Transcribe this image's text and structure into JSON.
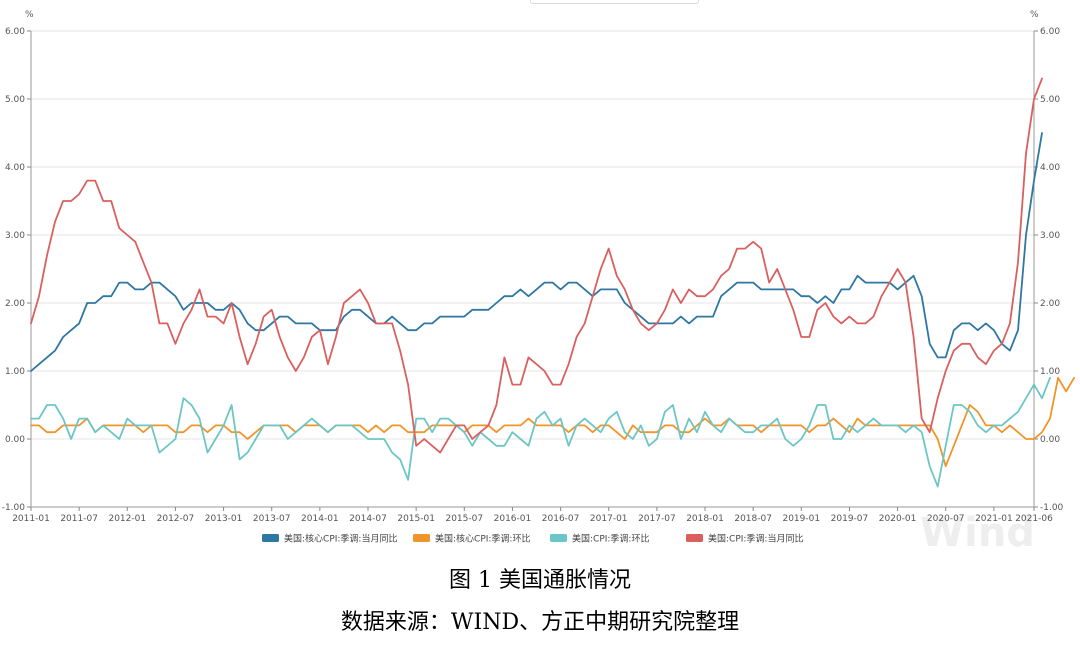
{
  "chart_data": {
    "type": "line",
    "unit_left": "%",
    "unit_right": "%",
    "ylim": [
      -1,
      6
    ],
    "y_ticks": [
      "6.00",
      "5.00",
      "4.00",
      "3.00",
      "2.00",
      "1.00",
      "0.00",
      "-1.00"
    ],
    "x_ticks": [
      "2011-01",
      "2011-07",
      "2012-01",
      "2012-07",
      "2013-01",
      "2013-07",
      "2014-01",
      "2014-07",
      "2015-01",
      "2015-07",
      "2016-01",
      "2016-07",
      "2017-01",
      "2017-07",
      "2018-01",
      "2018-07",
      "2019-01",
      "2019-07",
      "2020-01",
      "2020-07",
      "2021-01",
      "2021-06"
    ],
    "x_start": "2011-01",
    "x_end": "2021-06",
    "grid": true,
    "legend_position": "bottom",
    "watermark": "Wind",
    "series": [
      {
        "name": "美国:核心CPI:季调:当月同比",
        "color": "#2e77a3",
        "values": [
          1.0,
          1.1,
          1.2,
          1.3,
          1.5,
          1.6,
          1.7,
          2.0,
          2.0,
          2.1,
          2.1,
          2.3,
          2.3,
          2.2,
          2.2,
          2.3,
          2.3,
          2.2,
          2.1,
          1.9,
          2.0,
          2.0,
          2.0,
          1.9,
          1.9,
          2.0,
          1.9,
          1.7,
          1.6,
          1.6,
          1.7,
          1.8,
          1.8,
          1.7,
          1.7,
          1.7,
          1.6,
          1.6,
          1.6,
          1.8,
          1.9,
          1.9,
          1.8,
          1.7,
          1.7,
          1.8,
          1.7,
          1.6,
          1.6,
          1.7,
          1.7,
          1.8,
          1.8,
          1.8,
          1.8,
          1.9,
          1.9,
          1.9,
          2.0,
          2.1,
          2.1,
          2.2,
          2.1,
          2.2,
          2.3,
          2.3,
          2.2,
          2.3,
          2.3,
          2.2,
          2.1,
          2.2,
          2.2,
          2.2,
          2.0,
          1.9,
          1.8,
          1.7,
          1.7,
          1.7,
          1.7,
          1.8,
          1.7,
          1.8,
          1.8,
          1.8,
          2.1,
          2.2,
          2.3,
          2.3,
          2.3,
          2.2,
          2.2,
          2.2,
          2.2,
          2.2,
          2.1,
          2.1,
          2.0,
          2.1,
          2.0,
          2.2,
          2.2,
          2.4,
          2.3,
          2.3,
          2.3,
          2.3,
          2.2,
          2.3,
          2.4,
          2.1,
          1.4,
          1.2,
          1.2,
          1.6,
          1.7,
          1.7,
          1.6,
          1.7,
          1.6,
          1.4,
          1.3,
          1.6,
          3.0,
          3.8,
          4.5
        ]
      },
      {
        "name": "美国:核心CPI:季调:环比",
        "color": "#f0952a",
        "values": [
          0.2,
          0.2,
          0.1,
          0.1,
          0.2,
          0.2,
          0.2,
          0.3,
          0.1,
          0.2,
          0.2,
          0.2,
          0.2,
          0.2,
          0.1,
          0.2,
          0.2,
          0.2,
          0.1,
          0.1,
          0.2,
          0.2,
          0.1,
          0.2,
          0.2,
          0.1,
          0.1,
          0.0,
          0.1,
          0.2,
          0.2,
          0.2,
          0.2,
          0.1,
          0.2,
          0.2,
          0.2,
          0.1,
          0.2,
          0.2,
          0.2,
          0.2,
          0.1,
          0.2,
          0.1,
          0.2,
          0.2,
          0.1,
          0.1,
          0.1,
          0.2,
          0.2,
          0.2,
          0.2,
          0.1,
          0.2,
          0.2,
          0.2,
          0.1,
          0.2,
          0.2,
          0.2,
          0.3,
          0.2,
          0.2,
          0.2,
          0.2,
          0.1,
          0.2,
          0.2,
          0.1,
          0.2,
          0.2,
          0.1,
          0.0,
          0.2,
          0.1,
          0.1,
          0.1,
          0.2,
          0.2,
          0.1,
          0.1,
          0.2,
          0.3,
          0.2,
          0.2,
          0.3,
          0.2,
          0.2,
          0.2,
          0.1,
          0.2,
          0.2,
          0.2,
          0.2,
          0.2,
          0.1,
          0.2,
          0.2,
          0.3,
          0.2,
          0.1,
          0.3,
          0.2,
          0.2,
          0.2,
          0.2,
          0.2,
          0.2,
          0.2,
          0.2,
          0.2,
          0.0,
          -0.4,
          -0.1,
          0.2,
          0.5,
          0.4,
          0.2,
          0.2,
          0.1,
          0.2,
          0.1,
          0.0,
          0.0,
          0.1,
          0.3,
          0.9,
          0.7,
          0.9
        ]
      },
      {
        "name": "美国:CPI:季调:环比",
        "color": "#6cc6c6",
        "values": [
          0.3,
          0.3,
          0.5,
          0.5,
          0.3,
          0.0,
          0.3,
          0.3,
          0.1,
          0.2,
          0.1,
          0.0,
          0.3,
          0.2,
          0.2,
          0.2,
          -0.2,
          -0.1,
          0.0,
          0.6,
          0.5,
          0.3,
          -0.2,
          0.0,
          0.2,
          0.5,
          -0.3,
          -0.2,
          0.0,
          0.2,
          0.2,
          0.2,
          0.0,
          0.1,
          0.2,
          0.3,
          0.2,
          0.1,
          0.2,
          0.2,
          0.2,
          0.1,
          0.0,
          0.0,
          0.0,
          -0.2,
          -0.3,
          -0.6,
          0.3,
          0.3,
          0.1,
          0.3,
          0.3,
          0.2,
          0.1,
          -0.1,
          0.1,
          0.0,
          -0.1,
          -0.1,
          0.1,
          0.0,
          -0.1,
          0.3,
          0.4,
          0.2,
          0.3,
          -0.1,
          0.2,
          0.3,
          0.2,
          0.1,
          0.3,
          0.4,
          0.1,
          0.0,
          0.2,
          -0.1,
          0.0,
          0.4,
          0.5,
          0.0,
          0.3,
          0.1,
          0.4,
          0.2,
          0.1,
          0.3,
          0.2,
          0.1,
          0.1,
          0.2,
          0.2,
          0.3,
          0.0,
          -0.1,
          0.0,
          0.2,
          0.5,
          0.5,
          0.0,
          0.0,
          0.2,
          0.1,
          0.2,
          0.3,
          0.2,
          0.2,
          0.2,
          0.1,
          0.2,
          0.1,
          -0.4,
          -0.7,
          -0.1,
          0.5,
          0.5,
          0.4,
          0.2,
          0.1,
          0.2,
          0.2,
          0.3,
          0.4,
          0.6,
          0.8,
          0.6,
          0.9
        ]
      },
      {
        "name": "美国:CPI:季调:当月同比",
        "color": "#d9605f",
        "values": [
          1.7,
          2.1,
          2.7,
          3.2,
          3.5,
          3.5,
          3.6,
          3.8,
          3.8,
          3.5,
          3.5,
          3.1,
          3.0,
          2.9,
          2.6,
          2.3,
          1.7,
          1.7,
          1.4,
          1.7,
          1.9,
          2.2,
          1.8,
          1.8,
          1.7,
          2.0,
          1.5,
          1.1,
          1.4,
          1.8,
          1.9,
          1.5,
          1.2,
          1.0,
          1.2,
          1.5,
          1.6,
          1.1,
          1.5,
          2.0,
          2.1,
          2.2,
          2.0,
          1.7,
          1.7,
          1.7,
          1.3,
          0.8,
          -0.1,
          0.0,
          -0.1,
          -0.2,
          0.0,
          0.2,
          0.2,
          0.0,
          0.1,
          0.2,
          0.5,
          1.2,
          0.8,
          0.8,
          1.2,
          1.1,
          1.0,
          0.8,
          0.8,
          1.1,
          1.5,
          1.7,
          2.1,
          2.5,
          2.8,
          2.4,
          2.2,
          1.9,
          1.7,
          1.6,
          1.7,
          1.9,
          2.2,
          2.0,
          2.2,
          2.1,
          2.1,
          2.2,
          2.4,
          2.5,
          2.8,
          2.8,
          2.9,
          2.8,
          2.3,
          2.5,
          2.2,
          1.9,
          1.5,
          1.5,
          1.9,
          2.0,
          1.8,
          1.7,
          1.8,
          1.7,
          1.7,
          1.8,
          2.1,
          2.3,
          2.5,
          2.3,
          1.5,
          0.3,
          0.1,
          0.6,
          1.0,
          1.3,
          1.4,
          1.4,
          1.2,
          1.1,
          1.3,
          1.4,
          1.7,
          2.6,
          4.2,
          5.0,
          5.3
        ]
      }
    ]
  },
  "captions": {
    "title": "图 1 美国通胀情况",
    "source": "数据来源：WIND、方正中期研究院整理"
  }
}
